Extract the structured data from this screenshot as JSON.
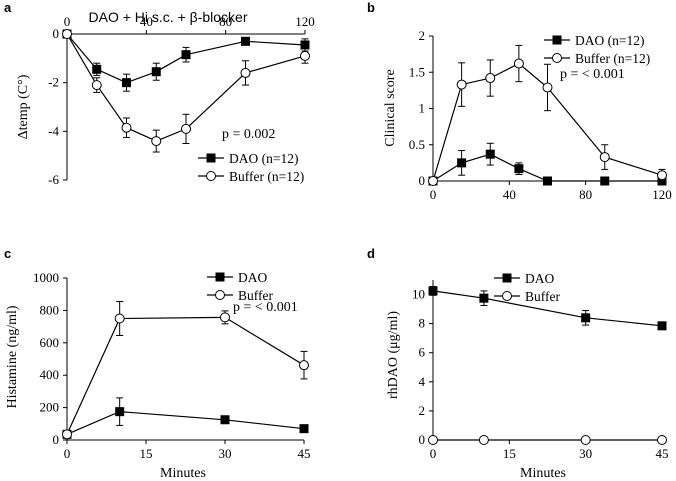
{
  "chart_data": [
    {
      "panel": "a",
      "type": "line",
      "title": "DAO + Hi s.c. + β-blocker",
      "xlabel": "",
      "ylabel": "Δtemp (C°)",
      "xlim": [
        0,
        120
      ],
      "ylim": [
        -6,
        0
      ],
      "xticks": [
        0,
        40,
        80,
        120
      ],
      "yticks": [
        -6,
        -4,
        -2,
        0
      ],
      "xtick_labels": [
        "0",
        "40",
        "80",
        "120"
      ],
      "ytick_labels": [
        "-6",
        "-4",
        "-2",
        "0"
      ],
      "annotation": "p = 0.002",
      "legend_pos": "bottom-right",
      "series": [
        {
          "name": "DAO (n=12)",
          "marker": "square",
          "x": [
            0,
            15,
            30,
            45,
            60,
            90,
            120
          ],
          "y": [
            0,
            -1.45,
            -2.0,
            -1.55,
            -0.85,
            -0.3,
            -0.45
          ],
          "err": [
            0,
            0.25,
            0.35,
            0.35,
            0.3,
            0.1,
            0.25
          ]
        },
        {
          "name": "Buffer (n=12)",
          "marker": "circle",
          "x": [
            0,
            15,
            30,
            45,
            60,
            90,
            120
          ],
          "y": [
            0,
            -2.1,
            -3.85,
            -4.4,
            -3.9,
            -1.6,
            -0.9
          ],
          "err": [
            0,
            0.3,
            0.4,
            0.45,
            0.6,
            0.5,
            0.3
          ]
        }
      ]
    },
    {
      "panel": "b",
      "type": "line",
      "title": "",
      "xlabel": "",
      "ylabel": "Clinical score",
      "xlim": [
        0,
        120
      ],
      "ylim": [
        0,
        2
      ],
      "xticks": [
        0,
        40,
        80,
        120
      ],
      "yticks": [
        0,
        0.5,
        1,
        1.5,
        2
      ],
      "xtick_labels": [
        "0",
        "40",
        "80",
        "120"
      ],
      "ytick_labels": [
        "0",
        "0.5",
        "1",
        "1.5",
        "2"
      ],
      "annotation": "p = < 0.001",
      "legend_pos": "top-right",
      "series": [
        {
          "name": "DAO (n=12)",
          "marker": "square",
          "x": [
            0,
            15,
            30,
            45,
            60,
            90,
            120
          ],
          "y": [
            0,
            0.25,
            0.37,
            0.17,
            0,
            0,
            0
          ],
          "err": [
            0,
            0.17,
            0.15,
            0.08,
            0,
            0,
            0
          ]
        },
        {
          "name": "Buffer (n=12)",
          "marker": "circle",
          "x": [
            0,
            15,
            30,
            45,
            60,
            90,
            120
          ],
          "y": [
            0,
            1.33,
            1.42,
            1.62,
            1.29,
            0.33,
            0.08
          ],
          "err": [
            0,
            0.3,
            0.25,
            0.25,
            0.32,
            0.17,
            0.08
          ]
        }
      ]
    },
    {
      "panel": "c",
      "type": "line",
      "title": "",
      "xlabel": "Minutes",
      "ylabel": "Histamine (ng/ml)",
      "xlim": [
        0,
        45
      ],
      "ylim": [
        0,
        1000
      ],
      "xticks": [
        0,
        15,
        30,
        45
      ],
      "yticks": [
        0,
        200,
        400,
        600,
        800,
        1000
      ],
      "xtick_labels": [
        "0",
        "15",
        "30",
        "45"
      ],
      "ytick_labels": [
        "0",
        "200",
        "400",
        "600",
        "800",
        "1000"
      ],
      "annotation": "p = < 0.001",
      "legend_pos": "top-right",
      "series": [
        {
          "name": "DAO",
          "marker": "square",
          "x": [
            0,
            10,
            30,
            45
          ],
          "y": [
            35,
            175,
            125,
            70
          ],
          "err": [
            0,
            85,
            20,
            0
          ]
        },
        {
          "name": "Buffer",
          "marker": "circle",
          "x": [
            0,
            10,
            30,
            45
          ],
          "y": [
            35,
            750,
            757,
            462
          ],
          "err": [
            0,
            105,
            40,
            85
          ]
        }
      ]
    },
    {
      "panel": "d",
      "type": "line",
      "title": "",
      "xlabel": "Minutes",
      "ylabel": "rhDAO (μg/ml)",
      "xlim": [
        0,
        45
      ],
      "ylim": [
        0,
        11
      ],
      "xticks": [
        0,
        15,
        30,
        45
      ],
      "yticks": [
        0,
        2,
        4,
        6,
        8,
        10
      ],
      "xtick_labels": [
        "0",
        "15",
        "30",
        "45"
      ],
      "ytick_labels": [
        "0",
        "2",
        "4",
        "6",
        "8",
        "10"
      ],
      "annotation": "",
      "legend_pos": "top-right",
      "series": [
        {
          "name": "DAO",
          "marker": "square",
          "x": [
            0,
            10,
            30,
            45
          ],
          "y": [
            10.25,
            9.75,
            8.4,
            7.85
          ],
          "err": [
            0.3,
            0.5,
            0.5,
            0
          ]
        },
        {
          "name": "Buffer",
          "marker": "circle",
          "x": [
            0,
            10,
            30,
            45
          ],
          "y": [
            0,
            0,
            0,
            0
          ],
          "err": [
            0,
            0,
            0,
            0
          ]
        }
      ]
    }
  ]
}
